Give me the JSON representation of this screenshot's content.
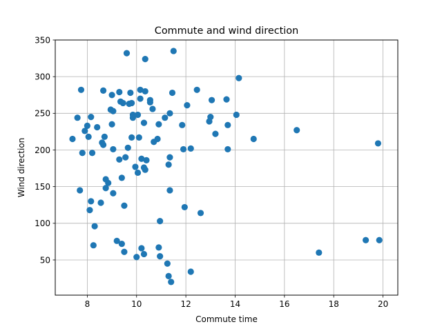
{
  "chart_data": {
    "type": "scatter",
    "title": "Commute and wind direction",
    "xlabel": "Commute time",
    "ylabel": "Wind direction",
    "xlim": [
      6.7,
      20.6
    ],
    "ylim": [
      2,
      350
    ],
    "xticks": [
      8,
      10,
      12,
      14,
      16,
      18,
      20
    ],
    "yticks": [
      50,
      100,
      150,
      200,
      250,
      300,
      350
    ],
    "grid": true,
    "colors": {
      "marker": "#1f77b4",
      "grid": "#b0b0b0",
      "axes": "#000000"
    },
    "series": [
      {
        "points": [
          [
            7.4,
            215
          ],
          [
            7.6,
            244
          ],
          [
            7.75,
            282
          ],
          [
            7.7,
            145
          ],
          [
            7.8,
            196
          ],
          [
            7.9,
            226
          ],
          [
            8.0,
            233
          ],
          [
            8.05,
            218
          ],
          [
            8.1,
            118
          ],
          [
            8.15,
            245
          ],
          [
            8.15,
            130
          ],
          [
            8.2,
            196
          ],
          [
            8.25,
            70
          ],
          [
            8.3,
            96
          ],
          [
            8.4,
            231
          ],
          [
            8.55,
            128
          ],
          [
            8.6,
            210
          ],
          [
            8.65,
            281
          ],
          [
            8.65,
            207
          ],
          [
            8.7,
            218
          ],
          [
            8.75,
            148
          ],
          [
            8.75,
            160
          ],
          [
            8.85,
            155
          ],
          [
            8.95,
            255
          ],
          [
            9.0,
            235
          ],
          [
            9.0,
            275
          ],
          [
            9.05,
            253
          ],
          [
            9.05,
            201
          ],
          [
            9.05,
            141
          ],
          [
            9.2,
            76
          ],
          [
            9.3,
            279
          ],
          [
            9.3,
            187
          ],
          [
            9.35,
            266
          ],
          [
            9.4,
            162
          ],
          [
            9.4,
            72
          ],
          [
            9.45,
            264
          ],
          [
            9.5,
            124
          ],
          [
            9.5,
            61
          ],
          [
            9.55,
            190
          ],
          [
            9.6,
            332
          ],
          [
            9.65,
            203
          ],
          [
            9.7,
            263
          ],
          [
            9.75,
            278
          ],
          [
            9.8,
            264
          ],
          [
            9.8,
            217
          ],
          [
            9.85,
            248
          ],
          [
            9.85,
            244
          ],
          [
            9.95,
            177
          ],
          [
            10.0,
            54
          ],
          [
            10.05,
            248
          ],
          [
            10.05,
            169
          ],
          [
            10.1,
            217
          ],
          [
            10.15,
            282
          ],
          [
            10.15,
            270
          ],
          [
            10.2,
            188
          ],
          [
            10.2,
            66
          ],
          [
            10.3,
            237
          ],
          [
            10.3,
            176
          ],
          [
            10.3,
            58
          ],
          [
            10.35,
            324
          ],
          [
            10.35,
            280
          ],
          [
            10.35,
            173
          ],
          [
            10.4,
            186
          ],
          [
            10.55,
            268
          ],
          [
            10.55,
            265
          ],
          [
            10.65,
            256
          ],
          [
            10.7,
            211
          ],
          [
            10.85,
            215
          ],
          [
            10.9,
            235
          ],
          [
            10.9,
            67
          ],
          [
            10.95,
            103
          ],
          [
            10.95,
            55
          ],
          [
            11.15,
            244
          ],
          [
            11.25,
            45
          ],
          [
            11.3,
            180
          ],
          [
            11.3,
            28
          ],
          [
            11.35,
            145
          ],
          [
            11.35,
            250
          ],
          [
            11.35,
            190
          ],
          [
            11.4,
            20
          ],
          [
            11.45,
            278
          ],
          [
            11.5,
            335
          ],
          [
            11.85,
            234
          ],
          [
            11.9,
            201
          ],
          [
            11.95,
            122
          ],
          [
            12.05,
            261
          ],
          [
            12.2,
            202
          ],
          [
            12.2,
            34
          ],
          [
            12.45,
            282
          ],
          [
            12.6,
            114
          ],
          [
            12.95,
            239
          ],
          [
            13.0,
            245
          ],
          [
            13.05,
            268
          ],
          [
            13.2,
            222
          ],
          [
            13.65,
            269
          ],
          [
            13.7,
            234
          ],
          [
            13.7,
            201
          ],
          [
            14.05,
            248
          ],
          [
            14.15,
            298
          ],
          [
            14.75,
            215
          ],
          [
            16.5,
            227
          ],
          [
            17.4,
            60
          ],
          [
            19.3,
            77
          ],
          [
            19.8,
            209
          ],
          [
            19.85,
            77
          ]
        ]
      }
    ]
  }
}
